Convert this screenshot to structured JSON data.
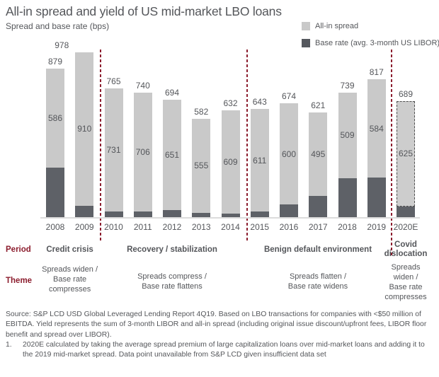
{
  "title": "All-in spread and yield of US mid-market LBO loans",
  "subtitle": "Spread and base rate (bps)",
  "legend": [
    {
      "label": "All-in spread",
      "color": "#c9c9c9"
    },
    {
      "label": "Base rate (avg. 3-month US LIBOR)",
      "color": "#55585e"
    }
  ],
  "colors": {
    "spread_bar": "#c9c9c9",
    "base_rate_bar": "#5e6167",
    "accent_maroon": "#8c1d2e",
    "text_gray": "#54565a",
    "axis_line": "#dcdcdc",
    "estimated_border": "#4f4f4f"
  },
  "chart_data": {
    "type": "bar",
    "stacked": true,
    "title": "All-in spread and yield of US mid-market LBO loans",
    "subtitle": "Spread and base rate (bps)",
    "ylabel": "Spread and base rate (bps)",
    "ylim": [
      0,
      1000
    ],
    "grid": false,
    "legend_position": "top-right",
    "categories": [
      "2008",
      "2009",
      "2010",
      "2011",
      "2012",
      "2013",
      "2014",
      "2015",
      "2016",
      "2017",
      "2018",
      "2019",
      "2020E"
    ],
    "series": [
      {
        "name": "Base rate (avg. 3-month US LIBOR)",
        "color": "#5e6167",
        "values": [
          293,
          68,
          34,
          34,
          43,
          27,
          23,
          32,
          74,
          126,
          230,
          233,
          64
        ]
      },
      {
        "name": "All-in spread",
        "color": "#c9c9c9",
        "values": [
          586,
          910,
          731,
          706,
          651,
          555,
          609,
          611,
          600,
          495,
          509,
          584,
          625
        ]
      }
    ],
    "totals": [
      879,
      978,
      765,
      740,
      694,
      582,
      632,
      643,
      674,
      621,
      739,
      817,
      689
    ],
    "estimated_category": "2020E",
    "value_labels": "all-in spread value inside each bar; total (spread + base rate) above each bar"
  },
  "row_labels": {
    "period": "Period",
    "theme": "Theme"
  },
  "periods": [
    {
      "period": "Credit crisis",
      "theme": "Spreads widen / Base rate compresses",
      "from": "2008",
      "to": "2009"
    },
    {
      "period": "Recovery / stabilization",
      "theme": "Spreads compress / Base rate flattens",
      "from": "2010",
      "to": "2014"
    },
    {
      "period": "Benign default environment",
      "theme": "Spreads flatten / Base rate widens",
      "from": "2015",
      "to": "2019"
    },
    {
      "period": "Covid dislocation",
      "theme": "Spreads widen / Base rate compresses",
      "from": "2020E",
      "to": "2020E"
    }
  ],
  "footer": {
    "source": "Source: S&P LCD USD Global Leveraged Lending Report 4Q19. Based on LBO transactions for companies with <$50 million of EBITDA. Yield represents the sum of 3-month LIBOR and all-in spread (including original issue discount/upfront fees, LIBOR floor benefit and spread over LIBOR).",
    "note_number": "1.",
    "note_text": "2020E calculated by taking the average spread premium of large capitalization loans over mid-market loans and adding it to the 2019 mid-market spread. Data point unavailable from S&P LCD given insufficient data set"
  }
}
